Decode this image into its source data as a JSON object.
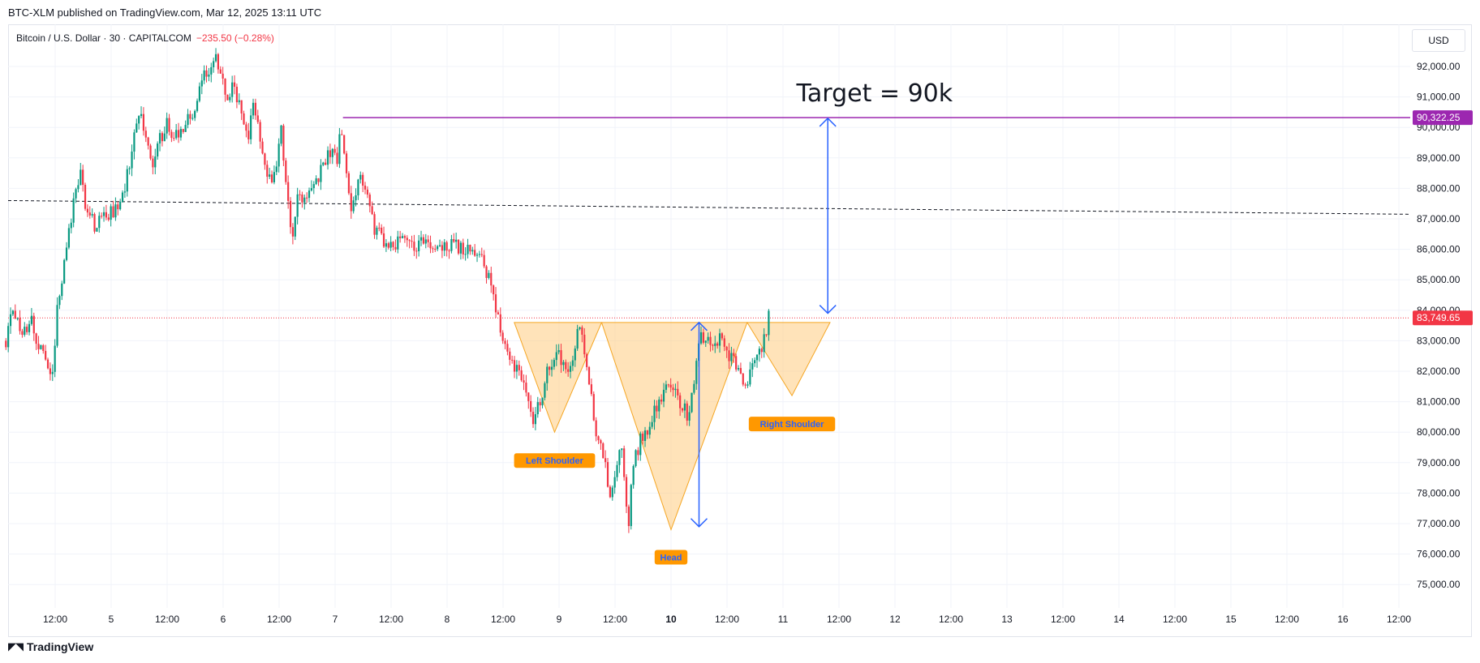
{
  "header": {
    "published": "BTC-XLM published on TradingView.com, Mar 12, 2025 13:11 UTC"
  },
  "legend": {
    "symbol": "Bitcoin / U.S. Dollar · 30 · CAPITALCOM",
    "change": "−235.50 (−0.28%)"
  },
  "currency": "USD",
  "footer": {
    "brand": "TradingView",
    "logo_icon": "tradingview-logo-icon"
  },
  "colors": {
    "up": "#089981",
    "down": "#f23645",
    "target_line": "#9c27b0",
    "arrow": "#2962ff",
    "pattern_fill": "#ffcc80",
    "pattern_stroke": "#f5a623",
    "label_bg": "#ff9800",
    "label_text": "#2962ff"
  },
  "chart_data": {
    "type": "candlestick",
    "title": "",
    "timeframe": "30",
    "ylim": [
      74200,
      92900
    ],
    "y_ticks": [
      75000,
      76000,
      77000,
      78000,
      79000,
      80000,
      81000,
      82000,
      83000,
      84000,
      85000,
      86000,
      87000,
      88000,
      89000,
      90000,
      91000,
      92000
    ],
    "y_tick_labels": [
      "75,000.00",
      "76,000.00",
      "77,000.00",
      "78,000.00",
      "79,000.00",
      "80,000.00",
      "81,000.00",
      "82,000.00",
      "83,000.00",
      "84,000.00",
      "85,000.00",
      "86,000.00",
      "87,000.00",
      "88,000.00",
      "89,000.00",
      "90,000.00",
      "91,000.00",
      "92,000.00"
    ],
    "x_ticks": [
      {
        "label": "12:00",
        "day": 4.0,
        "bold": false
      },
      {
        "label": "5",
        "day": 4.5,
        "bold": false
      },
      {
        "label": "12:00",
        "day": 5.0,
        "bold": false
      },
      {
        "label": "6",
        "day": 5.5,
        "bold": false
      },
      {
        "label": "12:00",
        "day": 6.0,
        "bold": false
      },
      {
        "label": "7",
        "day": 6.5,
        "bold": false
      },
      {
        "label": "12:00",
        "day": 7.0,
        "bold": false
      },
      {
        "label": "8",
        "day": 7.5,
        "bold": false
      },
      {
        "label": "12:00",
        "day": 8.0,
        "bold": false
      },
      {
        "label": "9",
        "day": 8.5,
        "bold": false
      },
      {
        "label": "12:00",
        "day": 9.0,
        "bold": false
      },
      {
        "label": "10",
        "day": 9.5,
        "bold": true
      },
      {
        "label": "12:00",
        "day": 10.0,
        "bold": false
      },
      {
        "label": "11",
        "day": 10.5,
        "bold": false
      },
      {
        "label": "12:00",
        "day": 11.0,
        "bold": false
      },
      {
        "label": "12",
        "day": 11.5,
        "bold": false
      },
      {
        "label": "12:00",
        "day": 12.0,
        "bold": false
      },
      {
        "label": "13",
        "day": 12.5,
        "bold": false
      },
      {
        "label": "12:00",
        "day": 13.0,
        "bold": false
      },
      {
        "label": "14",
        "day": 13.5,
        "bold": false
      },
      {
        "label": "12:00",
        "day": 14.0,
        "bold": false
      },
      {
        "label": "15",
        "day": 14.5,
        "bold": false
      },
      {
        "label": "12:00",
        "day": 15.0,
        "bold": false
      },
      {
        "label": "16",
        "day": 15.5,
        "bold": false
      },
      {
        "label": "12:00",
        "day": 16.0,
        "bold": false
      }
    ],
    "price_path": [
      [
        3.56,
        83000
      ],
      [
        3.6,
        83900
      ],
      [
        3.7,
        83400
      ],
      [
        3.8,
        83600
      ],
      [
        3.85,
        82800
      ],
      [
        3.92,
        82200
      ],
      [
        3.97,
        81800
      ],
      [
        4.02,
        84000
      ],
      [
        4.1,
        86000
      ],
      [
        4.18,
        87800
      ],
      [
        4.22,
        88600
      ],
      [
        4.28,
        87300
      ],
      [
        4.35,
        86800
      ],
      [
        4.42,
        87000
      ],
      [
        4.5,
        87200
      ],
      [
        4.58,
        87500
      ],
      [
        4.65,
        88500
      ],
      [
        4.7,
        89800
      ],
      [
        4.76,
        90400
      ],
      [
        4.82,
        89500
      ],
      [
        4.87,
        88400
      ],
      [
        4.92,
        89500
      ],
      [
        5.0,
        90100
      ],
      [
        5.1,
        89600
      ],
      [
        5.18,
        90200
      ],
      [
        5.25,
        90600
      ],
      [
        5.32,
        91600
      ],
      [
        5.4,
        92100
      ],
      [
        5.43,
        92700
      ],
      [
        5.48,
        91500
      ],
      [
        5.54,
        91100
      ],
      [
        5.6,
        91400
      ],
      [
        5.66,
        90500
      ],
      [
        5.72,
        89700
      ],
      [
        5.78,
        90800
      ],
      [
        5.84,
        89200
      ],
      [
        5.9,
        88500
      ],
      [
        5.95,
        88300
      ],
      [
        6.0,
        89400
      ],
      [
        6.02,
        90200
      ],
      [
        6.05,
        88500
      ],
      [
        6.1,
        87000
      ],
      [
        6.12,
        86200
      ],
      [
        6.16,
        87700
      ],
      [
        6.22,
        87600
      ],
      [
        6.3,
        88000
      ],
      [
        6.38,
        88600
      ],
      [
        6.45,
        89200
      ],
      [
        6.52,
        89000
      ],
      [
        6.55,
        90300
      ],
      [
        6.6,
        88500
      ],
      [
        6.65,
        87300
      ],
      [
        6.72,
        88700
      ],
      [
        6.78,
        87800
      ],
      [
        6.85,
        86600
      ],
      [
        6.9,
        86500
      ],
      [
        6.95,
        86200
      ],
      [
        7.02,
        86000
      ],
      [
        7.1,
        86400
      ],
      [
        7.2,
        86100
      ],
      [
        7.3,
        86300
      ],
      [
        7.4,
        86000
      ],
      [
        7.5,
        86200
      ],
      [
        7.6,
        86100
      ],
      [
        7.7,
        86000
      ],
      [
        7.8,
        85700
      ],
      [
        7.87,
        85100
      ],
      [
        7.92,
        84200
      ],
      [
        7.97,
        83500
      ],
      [
        8.02,
        82800
      ],
      [
        8.08,
        82300
      ],
      [
        8.15,
        81900
      ],
      [
        8.2,
        81200
      ],
      [
        8.26,
        80300
      ],
      [
        8.3,
        80700
      ],
      [
        8.37,
        81600
      ],
      [
        8.42,
        82300
      ],
      [
        8.48,
        82600
      ],
      [
        8.55,
        82100
      ],
      [
        8.62,
        82300
      ],
      [
        8.68,
        83500
      ],
      [
        8.73,
        82500
      ],
      [
        8.78,
        81300
      ],
      [
        8.84,
        79800
      ],
      [
        8.88,
        79400
      ],
      [
        8.93,
        78500
      ],
      [
        8.96,
        77700
      ],
      [
        9.0,
        78800
      ],
      [
        9.05,
        79600
      ],
      [
        9.08,
        78500
      ],
      [
        9.12,
        77000
      ],
      [
        9.16,
        78800
      ],
      [
        9.22,
        79700
      ],
      [
        9.3,
        80200
      ],
      [
        9.38,
        80900
      ],
      [
        9.45,
        81600
      ],
      [
        9.5,
        81500
      ],
      [
        9.55,
        81200
      ],
      [
        9.6,
        80900
      ],
      [
        9.65,
        80500
      ],
      [
        9.7,
        81500
      ],
      [
        9.76,
        83200
      ],
      [
        9.82,
        83100
      ],
      [
        9.88,
        82900
      ],
      [
        9.94,
        83100
      ],
      [
        10.0,
        82600
      ],
      [
        10.06,
        82300
      ],
      [
        10.12,
        81800
      ],
      [
        10.17,
        81400
      ],
      [
        10.22,
        82300
      ],
      [
        10.28,
        82500
      ],
      [
        10.34,
        83200
      ],
      [
        10.38,
        84000
      ]
    ],
    "last_price": 83749.65,
    "last_price_label": "83,749.65",
    "target_price": 90322.25,
    "target_price_label": "90,322.25",
    "target_line_start_day": 6.57,
    "previous_close_line": {
      "start_price": 87600,
      "end_price": 87150
    },
    "neckline_price": 83600,
    "head_and_shoulders": {
      "left_shoulder": {
        "start": [
          8.1,
          83600
        ],
        "bottom": [
          8.46,
          80000
        ],
        "end": [
          8.88,
          83600
        ],
        "label": "Left Shoulder"
      },
      "head": {
        "start": [
          8.88,
          83600
        ],
        "bottom": [
          9.5,
          76800
        ],
        "end": [
          10.18,
          83600
        ],
        "label": "Head"
      },
      "right_shoulder": {
        "start": [
          10.18,
          83600
        ],
        "bottom": [
          10.58,
          81200
        ],
        "end": [
          10.92,
          83600
        ],
        "label": "Right Shoulder"
      }
    },
    "measure_arrow_head": {
      "day": 9.75,
      "from": 83600,
      "to": 76900
    },
    "target_arrow": {
      "day": 10.9,
      "from": 83900,
      "to": 90300
    },
    "annotation": "Target = 90k"
  }
}
